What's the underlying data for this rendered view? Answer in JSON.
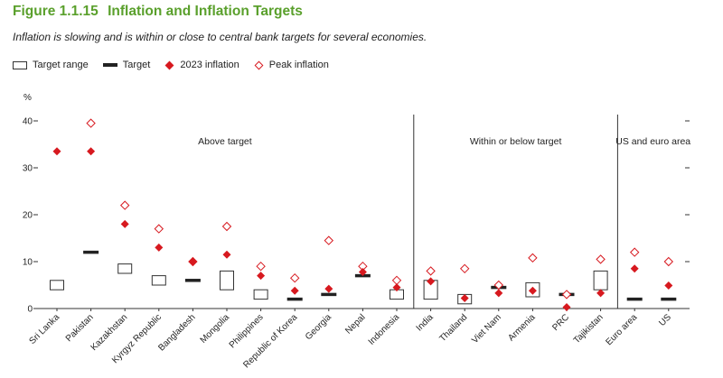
{
  "figure": {
    "number": "Figure 1.1.15",
    "title": "Inflation and Inflation Targets",
    "subtitle": "Inflation is slowing and is within or close to central bank targets for several economies."
  },
  "legend": {
    "target_range": "Target range",
    "target": "Target",
    "inflation_2023": "2023 inflation",
    "peak_inflation": "Peak inflation"
  },
  "chart_data": {
    "type": "scatter",
    "y_unit": "%",
    "ylim": [
      0,
      40
    ],
    "y_ticks": [
      "0",
      "10",
      "20",
      "30",
      "40"
    ],
    "groups": [
      {
        "label": "Above target",
        "categories": [
          "Sri Lanka",
          "Pakistan",
          "Kazakhstan",
          "Kyrgyz Republic",
          "Bangladesh",
          "Mongolia",
          "Philippines",
          "Republic of Korea",
          "Georgia",
          "Nepal",
          "Indonesia"
        ]
      },
      {
        "label": "Within or below target",
        "categories": [
          "India",
          "Thailand",
          "Viet Nam",
          "Armenia",
          "PRC",
          "Tajikistan"
        ]
      },
      {
        "label": "US and euro area",
        "categories": [
          "Euro area",
          "US"
        ]
      }
    ],
    "categories": [
      "Sri Lanka",
      "Pakistan",
      "Kazakhstan",
      "Kyrgyz Republic",
      "Bangladesh",
      "Mongolia",
      "Philippines",
      "Republic of Korea",
      "Georgia",
      "Nepal",
      "Indonesia",
      "India",
      "Thailand",
      "Viet Nam",
      "Armenia",
      "PRC",
      "Tajikistan",
      "Euro area",
      "US"
    ],
    "target_range": [
      [
        4,
        6
      ],
      null,
      [
        7.5,
        9.5
      ],
      [
        5,
        7
      ],
      null,
      [
        4,
        8
      ],
      [
        2,
        4
      ],
      null,
      null,
      null,
      [
        2,
        4
      ],
      [
        2,
        6
      ],
      [
        1,
        3
      ],
      null,
      [
        2.5,
        5.5
      ],
      null,
      [
        4,
        8
      ],
      null,
      null
    ],
    "target": [
      null,
      12,
      null,
      null,
      6,
      null,
      null,
      2,
      3,
      7,
      null,
      null,
      null,
      4.5,
      null,
      3,
      null,
      2,
      2
    ],
    "inflation_2023": [
      33.5,
      33.5,
      18,
      13,
      10,
      11.5,
      7,
      3.8,
      4.2,
      7.8,
      4.5,
      5.8,
      2.2,
      3.3,
      3.8,
      0.3,
      3.3,
      8.5,
      4.9
    ],
    "peak_inflation": [
      null,
      39.5,
      22,
      17,
      10,
      17.5,
      9,
      6.5,
      14.5,
      9,
      6,
      8,
      8.5,
      5,
      10.8,
      3,
      10.5,
      12,
      10
    ]
  }
}
